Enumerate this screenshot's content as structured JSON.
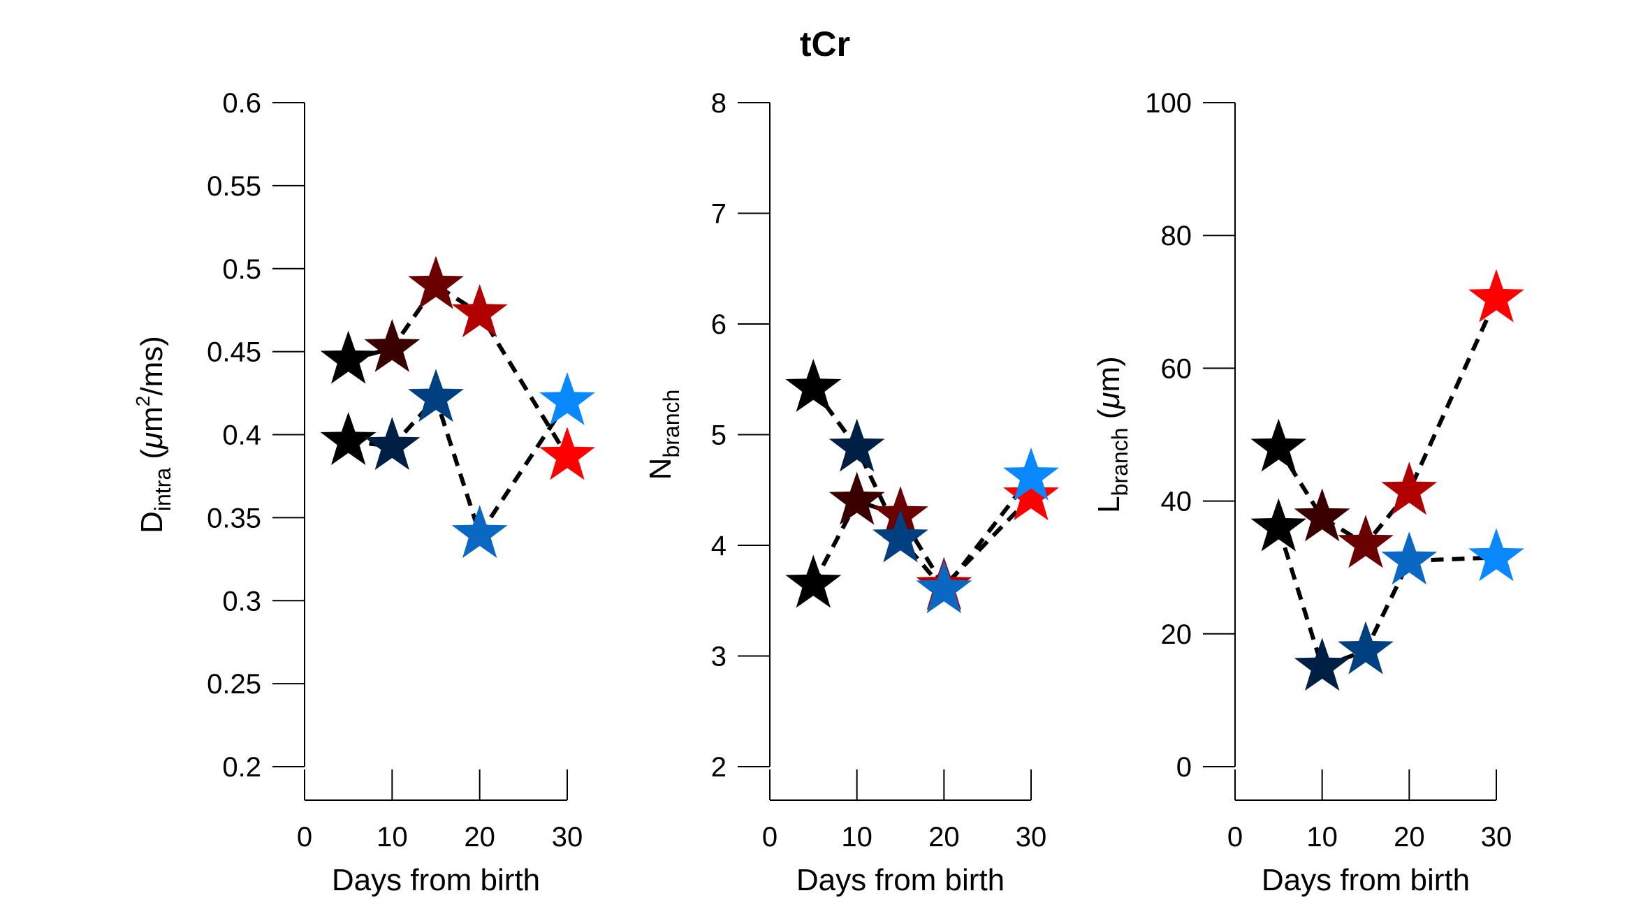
{
  "figure": {
    "title": "tCr"
  },
  "chart_data": [
    {
      "type": "scatter",
      "xlabel": "Days from birth",
      "ylabel": {
        "main": "D",
        "sub": "intra",
        "rest_open": " (",
        "mu": "μ",
        "unit": "m",
        "sup": "2",
        "rest_close": "/ms)"
      },
      "xlim": [
        0,
        30
      ],
      "ylim": [
        0.2,
        0.6
      ],
      "xticks": [
        "0",
        "10",
        "20",
        "30"
      ],
      "yticks": [
        "0.2",
        "0.25",
        "0.3",
        "0.35",
        "0.4",
        "0.45",
        "0.5",
        "0.55",
        "0.6"
      ],
      "series": [
        {
          "color": "#7a0000",
          "points": [
            {
              "x": 5,
              "y": 0.445,
              "color": "#000000"
            },
            {
              "x": 10,
              "y": 0.452,
              "color": "#3a0000"
            },
            {
              "x": 15,
              "y": 0.49,
              "color": "#6b0000"
            },
            {
              "x": 20,
              "y": 0.473,
              "color": "#b00000"
            },
            {
              "x": 30,
              "y": 0.387,
              "color": "#ff0000"
            }
          ]
        },
        {
          "color": "#0055aa",
          "points": [
            {
              "x": 5,
              "y": 0.396,
              "color": "#000000"
            },
            {
              "x": 10,
              "y": 0.393,
              "color": "#001f44"
            },
            {
              "x": 15,
              "y": 0.422,
              "color": "#003f80"
            },
            {
              "x": 20,
              "y": 0.34,
              "color": "#0a68c2"
            },
            {
              "x": 30,
              "y": 0.42,
              "color": "#0a88ff"
            }
          ]
        }
      ]
    },
    {
      "type": "scatter",
      "xlabel": "Days from birth",
      "ylabel": {
        "main": "N",
        "sub": "branch"
      },
      "xlim": [
        0,
        30
      ],
      "ylim": [
        2,
        8
      ],
      "xticks": [
        "0",
        "10",
        "20",
        "30"
      ],
      "yticks": [
        "2",
        "3",
        "4",
        "5",
        "6",
        "7",
        "8"
      ],
      "series": [
        {
          "color": "#7a0000",
          "points": [
            {
              "x": 5,
              "y": 3.65,
              "color": "#000000"
            },
            {
              "x": 10,
              "y": 4.4,
              "color": "#3a0000"
            },
            {
              "x": 15,
              "y": 4.27,
              "color": "#6b0000"
            },
            {
              "x": 20,
              "y": 3.63,
              "color": "#b00000"
            },
            {
              "x": 30,
              "y": 4.44,
              "color": "#ff0000"
            }
          ]
        },
        {
          "color": "#0055aa",
          "points": [
            {
              "x": 5,
              "y": 5.42,
              "color": "#000000"
            },
            {
              "x": 10,
              "y": 4.88,
              "color": "#001f44"
            },
            {
              "x": 15,
              "y": 4.06,
              "color": "#003f80"
            },
            {
              "x": 20,
              "y": 3.6,
              "color": "#0a68c2"
            },
            {
              "x": 30,
              "y": 4.62,
              "color": "#0a88ff"
            }
          ]
        }
      ]
    },
    {
      "type": "scatter",
      "xlabel": "Days from birth",
      "ylabel": {
        "main": "L",
        "sub": "branch",
        "rest_open": " (",
        "mu": "μ",
        "unit": "m",
        "rest_close": ")"
      },
      "xlim": [
        0,
        30
      ],
      "ylim": [
        0,
        100
      ],
      "xticks": [
        "0",
        "10",
        "20",
        "30"
      ],
      "yticks": [
        "0",
        "20",
        "40",
        "60",
        "80",
        "100"
      ],
      "series": [
        {
          "color": "#7a0000",
          "points": [
            {
              "x": 5,
              "y": 48,
              "color": "#000000"
            },
            {
              "x": 10,
              "y": 37.5,
              "color": "#3a0000"
            },
            {
              "x": 15,
              "y": 33.5,
              "color": "#6b0000"
            },
            {
              "x": 20,
              "y": 41.5,
              "color": "#b00000"
            },
            {
              "x": 30,
              "y": 70.5,
              "color": "#ff0000"
            }
          ]
        },
        {
          "color": "#0055aa",
          "points": [
            {
              "x": 5,
              "y": 36,
              "color": "#000000"
            },
            {
              "x": 10,
              "y": 15,
              "color": "#001f44"
            },
            {
              "x": 15,
              "y": 17.5,
              "color": "#003f80"
            },
            {
              "x": 20,
              "y": 31,
              "color": "#0a68c2"
            },
            {
              "x": 30,
              "y": 31.5,
              "color": "#0a88ff"
            }
          ]
        }
      ]
    }
  ]
}
